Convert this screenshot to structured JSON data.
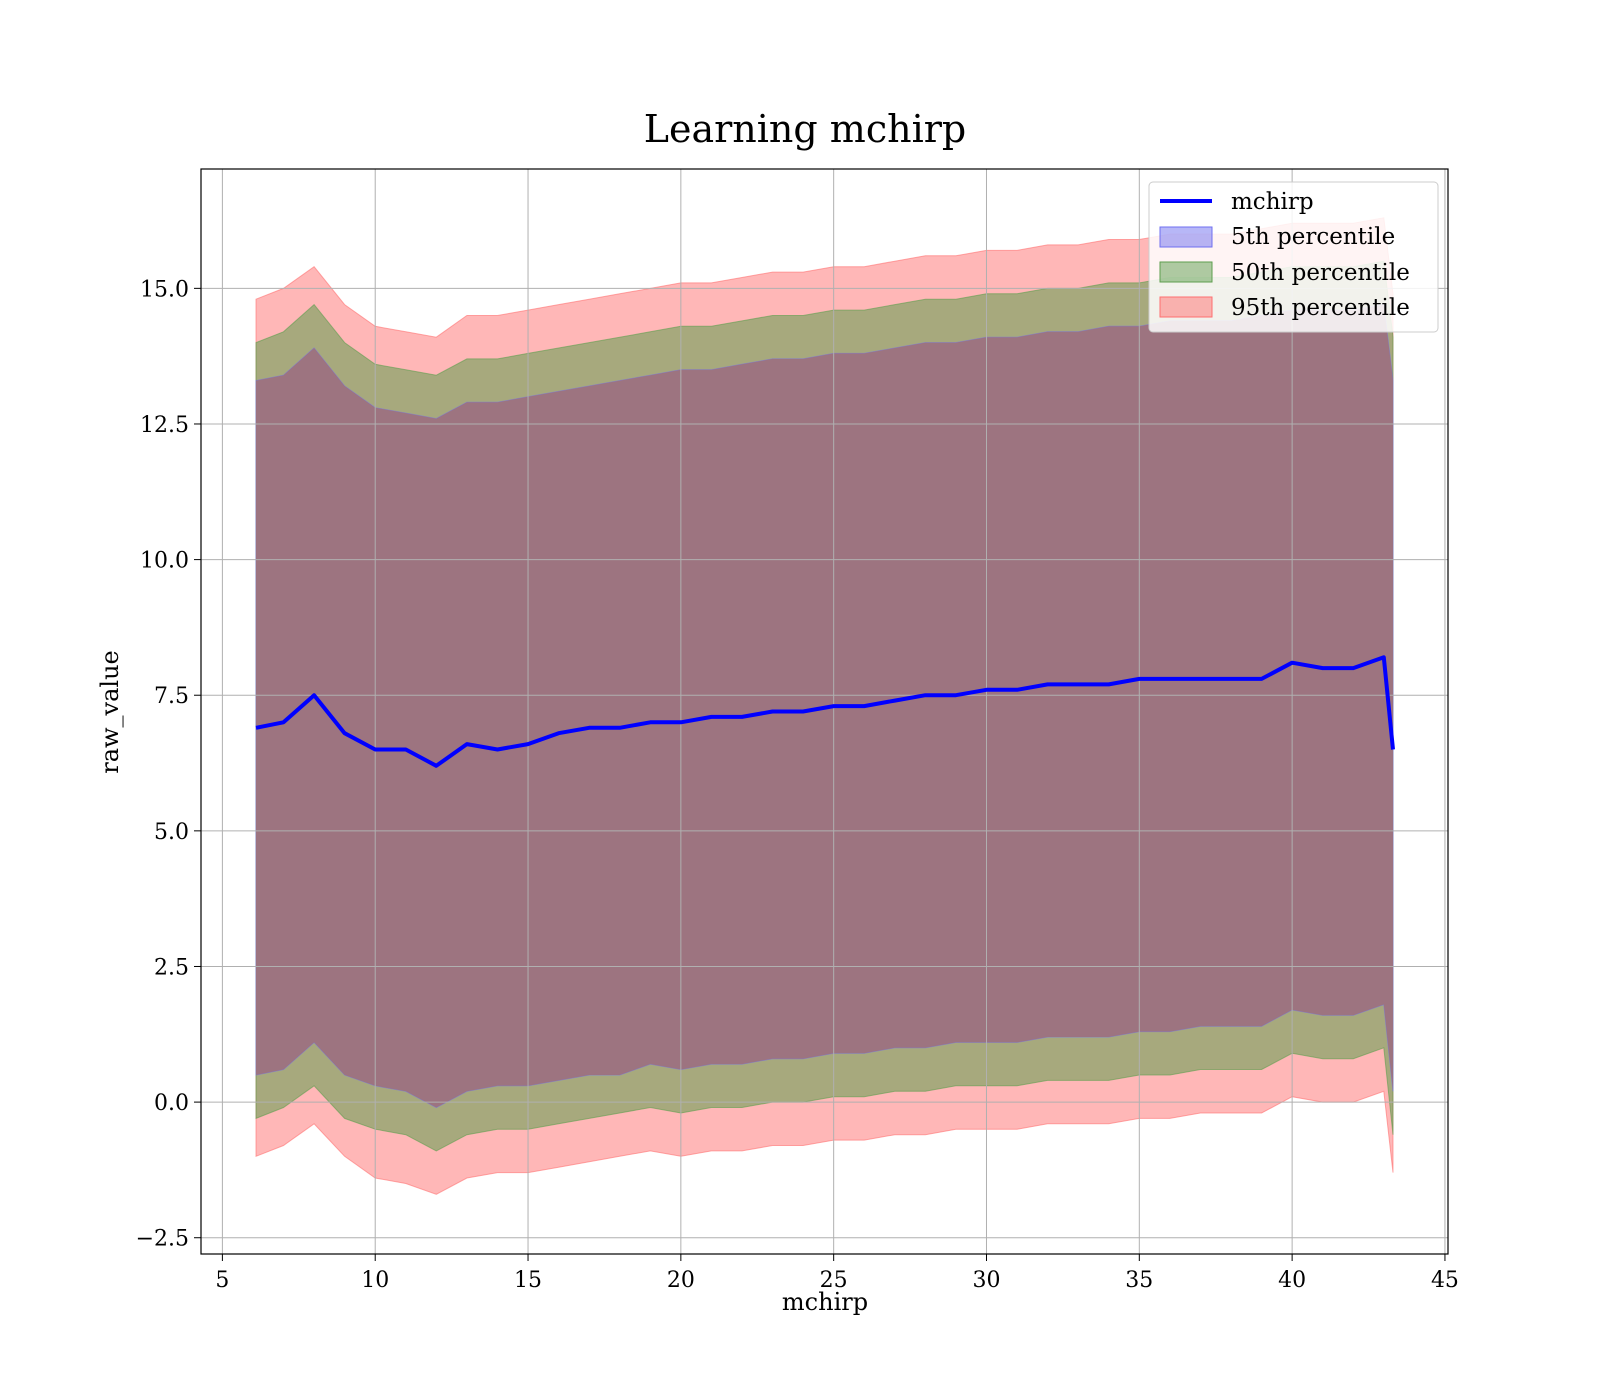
{
  "chart_data": {
    "type": "line",
    "title": "Learning mchirp",
    "xlabel": "mchirp",
    "ylabel": "raw_value",
    "xlim": [
      4.3,
      45.1
    ],
    "ylim": [
      -2.8,
      17.2
    ],
    "x_ticks": [
      5,
      10,
      15,
      20,
      25,
      30,
      35,
      40,
      45
    ],
    "x_tick_labels": [
      "5",
      "10",
      "15",
      "20",
      "25",
      "30",
      "35",
      "40",
      "45"
    ],
    "y_ticks": [
      -2.5,
      0,
      2.5,
      5,
      7.5,
      10,
      12.5,
      15
    ],
    "y_tick_labels": [
      "−2.5",
      "0.0",
      "2.5",
      "5.0",
      "7.5",
      "10.0",
      "12.5",
      "15.0"
    ],
    "grid": true,
    "legend_position": "top-right",
    "colors": {
      "line": "#0000ff",
      "band_5": "#6f6ff0",
      "band_50": "#5e9e4e",
      "band_95": "#ff6f6f",
      "composite": "#a07078"
    },
    "x": [
      6.1,
      7.0,
      8.0,
      9.0,
      10.0,
      11.0,
      12.0,
      13.0,
      14.0,
      15.0,
      16.0,
      17.0,
      18.0,
      19.0,
      20.0,
      21.0,
      22.0,
      23.0,
      24.0,
      25.0,
      26.0,
      27.0,
      28.0,
      29.0,
      30.0,
      31.0,
      32.0,
      33.0,
      34.0,
      35.0,
      36.0,
      37.0,
      38.0,
      39.0,
      40.0,
      41.0,
      42.0,
      43.0,
      43.3
    ],
    "series": [
      {
        "name": "mchirp",
        "values": [
          6.9,
          7.0,
          7.5,
          6.8,
          6.5,
          6.5,
          6.2,
          6.6,
          6.5,
          6.6,
          6.8,
          6.9,
          6.9,
          7.0,
          7.0,
          7.1,
          7.1,
          7.2,
          7.2,
          7.3,
          7.3,
          7.4,
          7.5,
          7.5,
          7.6,
          7.6,
          7.7,
          7.7,
          7.7,
          7.8,
          7.8,
          7.8,
          7.8,
          7.8,
          8.1,
          8.0,
          8.0,
          8.2,
          6.5
        ]
      },
      {
        "name": "5th percentile",
        "lower": [
          0.5,
          0.6,
          1.1,
          0.5,
          0.3,
          0.2,
          -0.1,
          0.2,
          0.3,
          0.3,
          0.4,
          0.5,
          0.5,
          0.7,
          0.6,
          0.7,
          0.7,
          0.8,
          0.8,
          0.9,
          0.9,
          1.0,
          1.0,
          1.1,
          1.1,
          1.1,
          1.2,
          1.2,
          1.2,
          1.3,
          1.3,
          1.4,
          1.4,
          1.4,
          1.7,
          1.6,
          1.6,
          1.8,
          0.2
        ],
        "upper": [
          13.3,
          13.4,
          13.9,
          13.2,
          12.8,
          12.7,
          12.6,
          12.9,
          12.9,
          13.0,
          13.1,
          13.2,
          13.3,
          13.4,
          13.5,
          13.5,
          13.6,
          13.7,
          13.7,
          13.8,
          13.8,
          13.9,
          14.0,
          14.0,
          14.1,
          14.1,
          14.2,
          14.2,
          14.3,
          14.3,
          14.4,
          14.4,
          14.4,
          14.5,
          14.6,
          14.6,
          14.6,
          14.7,
          13.3
        ]
      },
      {
        "name": "50th percentile",
        "lower": [
          -0.3,
          -0.1,
          0.3,
          -0.3,
          -0.5,
          -0.6,
          -0.9,
          -0.6,
          -0.5,
          -0.5,
          -0.4,
          -0.3,
          -0.2,
          -0.1,
          -0.2,
          -0.1,
          -0.1,
          0.0,
          0.0,
          0.1,
          0.1,
          0.2,
          0.2,
          0.3,
          0.3,
          0.3,
          0.4,
          0.4,
          0.4,
          0.5,
          0.5,
          0.6,
          0.6,
          0.6,
          0.9,
          0.8,
          0.8,
          1.0,
          -0.6
        ],
        "upper": [
          14.0,
          14.2,
          14.7,
          14.0,
          13.6,
          13.5,
          13.4,
          13.7,
          13.7,
          13.8,
          13.9,
          14.0,
          14.1,
          14.2,
          14.3,
          14.3,
          14.4,
          14.5,
          14.5,
          14.6,
          14.6,
          14.7,
          14.8,
          14.8,
          14.9,
          14.9,
          15.0,
          15.0,
          15.1,
          15.1,
          15.2,
          15.2,
          15.2,
          15.3,
          15.4,
          15.4,
          15.4,
          15.5,
          14.1
        ]
      },
      {
        "name": "95th percentile",
        "lower": [
          -1.0,
          -0.8,
          -0.4,
          -1.0,
          -1.4,
          -1.5,
          -1.7,
          -1.4,
          -1.3,
          -1.3,
          -1.2,
          -1.1,
          -1.0,
          -0.9,
          -1.0,
          -0.9,
          -0.9,
          -0.8,
          -0.8,
          -0.7,
          -0.7,
          -0.6,
          -0.6,
          -0.5,
          -0.5,
          -0.5,
          -0.4,
          -0.4,
          -0.4,
          -0.3,
          -0.3,
          -0.2,
          -0.2,
          -0.2,
          0.1,
          0.0,
          0.0,
          0.2,
          -1.3
        ],
        "upper": [
          14.8,
          15.0,
          15.4,
          14.7,
          14.3,
          14.2,
          14.1,
          14.5,
          14.5,
          14.6,
          14.7,
          14.8,
          14.9,
          15.0,
          15.1,
          15.1,
          15.2,
          15.3,
          15.3,
          15.4,
          15.4,
          15.5,
          15.6,
          15.6,
          15.7,
          15.7,
          15.8,
          15.8,
          15.9,
          15.9,
          16.0,
          16.0,
          16.0,
          16.1,
          16.2,
          16.2,
          16.2,
          16.3,
          14.9
        ]
      }
    ],
    "legend": [
      "mchirp",
      "5th percentile",
      "50th percentile",
      "95th percentile"
    ]
  }
}
